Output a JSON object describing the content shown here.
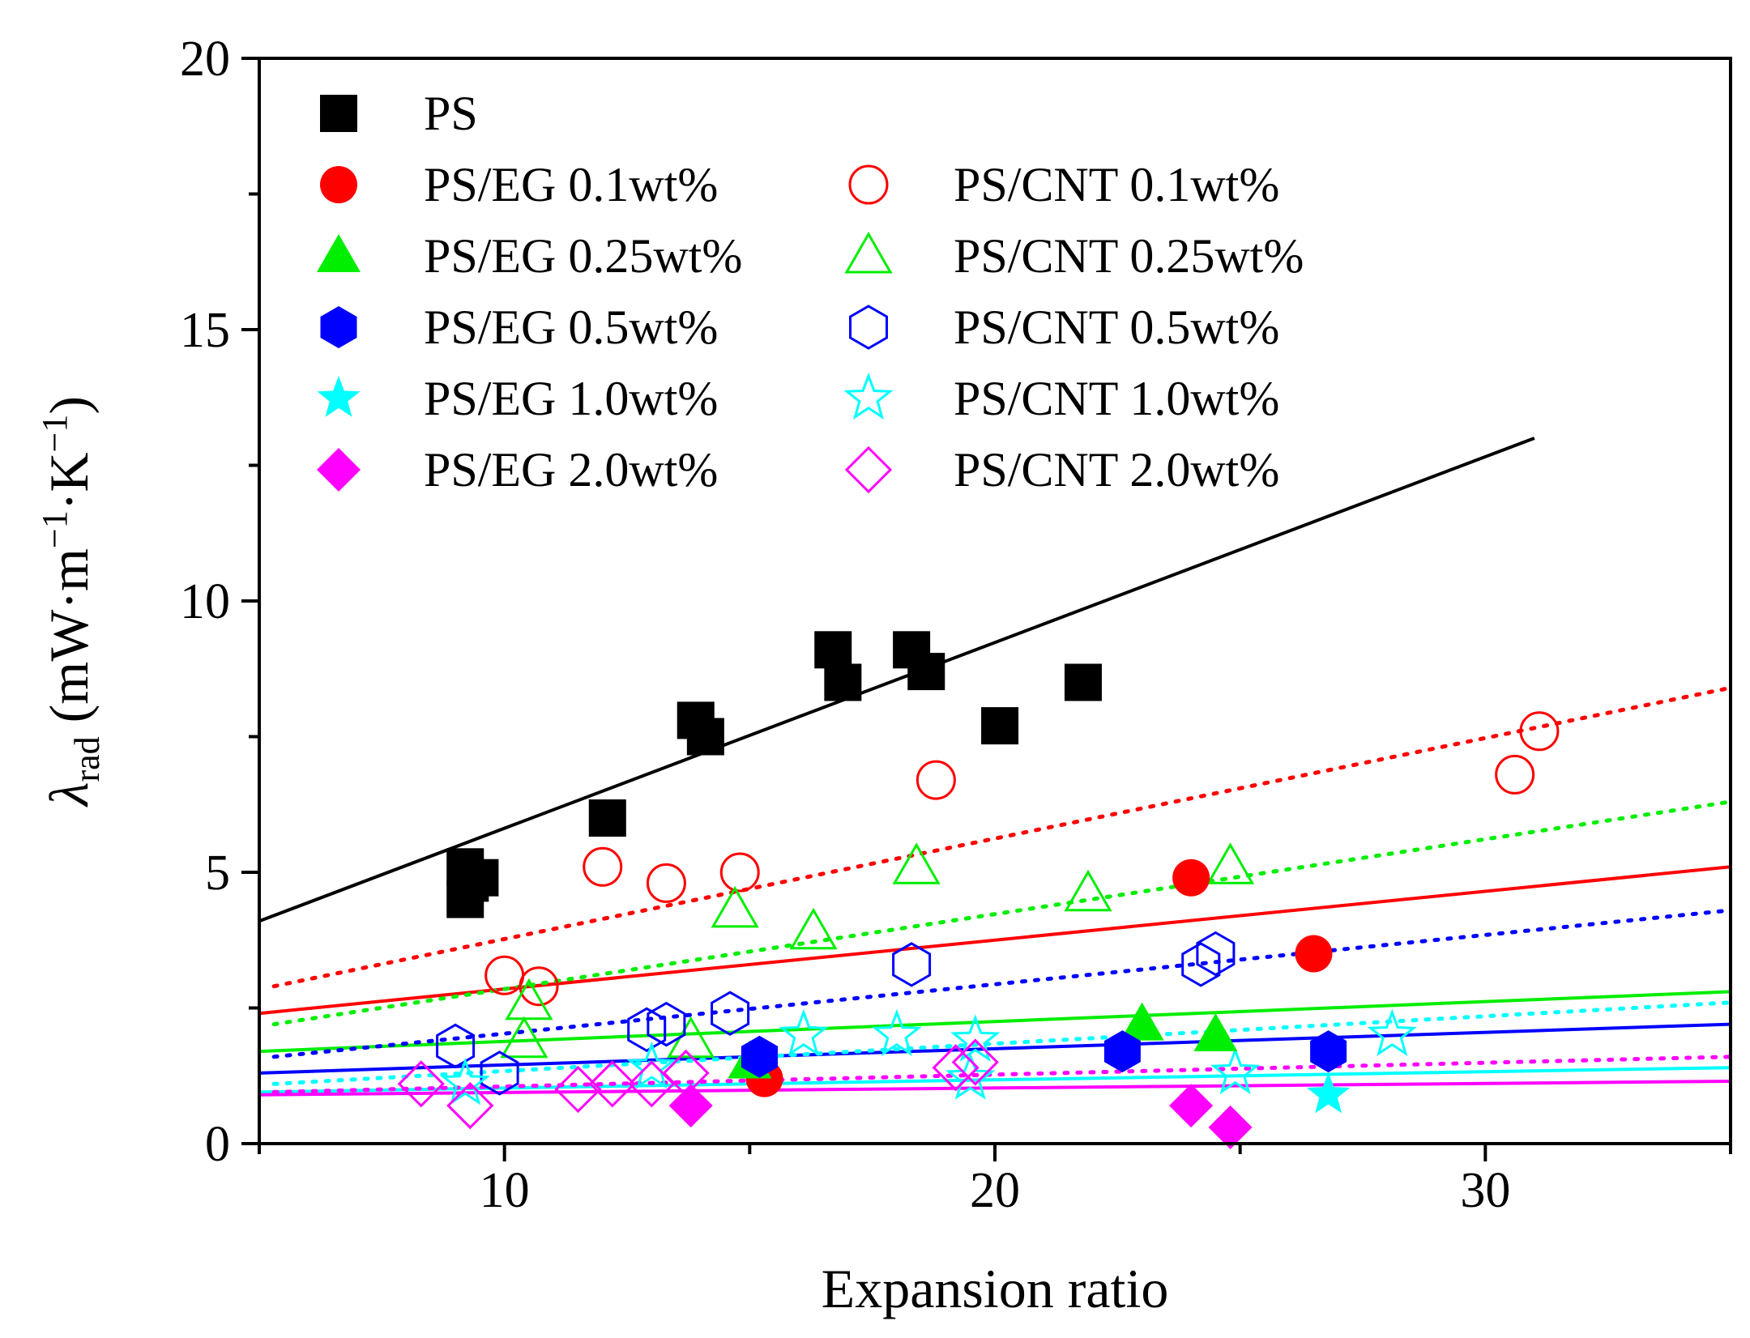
{
  "chart_data": {
    "type": "scatter",
    "xlabel": "Expansion ratio",
    "ylabel": {
      "symbol": "λ",
      "subscript": "rad",
      "units_prefix": " (mW·m",
      "sup1": "−1",
      "units_mid": "·K",
      "sup2": "−1",
      "units_suffix": ")"
    },
    "xlim": [
      5,
      35
    ],
    "ylim": [
      0,
      20
    ],
    "x_ticks": [
      10,
      20,
      30
    ],
    "x_tick_labels": [
      "10",
      "20",
      "30"
    ],
    "y_ticks": [
      0,
      5,
      10,
      15,
      20
    ],
    "y_tick_labels": [
      "0",
      "5",
      "10",
      "15",
      "20"
    ],
    "legend_position": "top-left",
    "series": [
      {
        "name": "PS",
        "marker": "square",
        "filled": true,
        "color": "#000000",
        "fit": {
          "style": "solid",
          "x": [
            5,
            31
          ],
          "y": [
            4.1,
            13.0
          ]
        },
        "points": [
          [
            9.2,
            5.1
          ],
          [
            9.3,
            4.8
          ],
          [
            9.5,
            4.9
          ],
          [
            9.2,
            4.5
          ],
          [
            13.9,
            7.8
          ],
          [
            14.1,
            7.5
          ],
          [
            12.1,
            6.0
          ],
          [
            16.7,
            9.1
          ],
          [
            16.9,
            8.5
          ],
          [
            18.3,
            9.1
          ],
          [
            18.6,
            8.7
          ],
          [
            20.1,
            7.7
          ],
          [
            21.8,
            8.5
          ]
        ]
      },
      {
        "name": "PS/EG 0.1wt%",
        "marker": "circle",
        "filled": true,
        "color": "#ff0000",
        "fit": {
          "style": "solid",
          "x": [
            5,
            35
          ],
          "y": [
            2.4,
            5.1
          ]
        },
        "points": [
          [
            15.3,
            1.2
          ],
          [
            24.0,
            4.9
          ],
          [
            26.5,
            3.5
          ]
        ]
      },
      {
        "name": "PS/EG 0.25wt%",
        "marker": "triangle",
        "filled": true,
        "color": "#00ee00",
        "fit": {
          "style": "solid",
          "x": [
            5,
            35
          ],
          "y": [
            1.7,
            2.8
          ]
        },
        "points": [
          [
            15.0,
            1.5
          ],
          [
            23.0,
            2.2
          ],
          [
            24.5,
            2.0
          ]
        ]
      },
      {
        "name": "PS/EG 0.5wt%",
        "marker": "hexagon",
        "filled": true,
        "color": "#0000ff",
        "fit": {
          "style": "solid",
          "x": [
            5,
            35
          ],
          "y": [
            1.3,
            2.2
          ]
        },
        "points": [
          [
            15.2,
            1.6
          ],
          [
            22.6,
            1.7
          ],
          [
            26.8,
            1.7
          ]
        ]
      },
      {
        "name": "PS/EG 1.0wt%",
        "marker": "star",
        "filled": true,
        "color": "#00ffff",
        "fit": {
          "style": "solid",
          "x": [
            5,
            35
          ],
          "y": [
            0.95,
            1.4
          ]
        },
        "points": [
          [
            26.8,
            0.9
          ]
        ]
      },
      {
        "name": "PS/EG 2.0wt%",
        "marker": "diamond",
        "filled": true,
        "color": "#ff00ff",
        "fit": {
          "style": "solid",
          "x": [
            5,
            35
          ],
          "y": [
            0.9,
            1.15
          ]
        },
        "points": [
          [
            13.8,
            0.7
          ],
          [
            24.0,
            0.7
          ],
          [
            24.8,
            0.3
          ]
        ]
      },
      {
        "name": "PS/CNT 0.1wt%",
        "marker": "circle",
        "filled": false,
        "color": "#ff0000",
        "fit": {
          "style": "dotted",
          "x": [
            5.3,
            35
          ],
          "y": [
            2.9,
            8.4
          ]
        },
        "points": [
          [
            10.0,
            3.1
          ],
          [
            10.7,
            2.9
          ],
          [
            12.0,
            5.1
          ],
          [
            13.3,
            4.8
          ],
          [
            14.8,
            5.0
          ],
          [
            18.8,
            6.7
          ],
          [
            30.6,
            6.8
          ],
          [
            31.1,
            7.6
          ]
        ]
      },
      {
        "name": "PS/CNT 0.25wt%",
        "marker": "triangle",
        "filled": false,
        "color": "#00ee00",
        "fit": {
          "style": "dotted",
          "x": [
            5.3,
            35
          ],
          "y": [
            2.2,
            6.3
          ]
        },
        "points": [
          [
            10.5,
            2.6
          ],
          [
            10.4,
            1.9
          ],
          [
            13.8,
            1.9
          ],
          [
            14.7,
            4.3
          ],
          [
            16.3,
            3.9
          ],
          [
            18.4,
            5.1
          ],
          [
            21.9,
            4.6
          ],
          [
            24.8,
            5.1
          ]
        ]
      },
      {
        "name": "PS/CNT 0.5wt%",
        "marker": "hexagon",
        "filled": false,
        "color": "#0000ff",
        "fit": {
          "style": "dotted",
          "x": [
            5.3,
            35
          ],
          "y": [
            1.6,
            4.3
          ]
        },
        "points": [
          [
            9.0,
            1.8
          ],
          [
            9.9,
            1.3
          ],
          [
            12.9,
            2.1
          ],
          [
            13.3,
            2.2
          ],
          [
            14.6,
            2.4
          ],
          [
            18.3,
            3.3
          ],
          [
            24.2,
            3.3
          ],
          [
            24.5,
            3.5
          ]
        ]
      },
      {
        "name": "PS/CNT 1.0wt%",
        "marker": "star",
        "filled": false,
        "color": "#00ffff",
        "fit": {
          "style": "dotted",
          "x": [
            5.3,
            35
          ],
          "y": [
            1.1,
            2.6
          ]
        },
        "points": [
          [
            9.2,
            1.1
          ],
          [
            13.0,
            1.4
          ],
          [
            16.1,
            2.0
          ],
          [
            18.0,
            2.0
          ],
          [
            19.6,
            1.9
          ],
          [
            19.5,
            1.2
          ],
          [
            24.9,
            1.3
          ],
          [
            28.1,
            2.0
          ]
        ]
      },
      {
        "name": "PS/CNT 2.0wt%",
        "marker": "diamond",
        "filled": false,
        "color": "#ff00ff",
        "fit": {
          "style": "dotted",
          "x": [
            5.3,
            35
          ],
          "y": [
            0.95,
            1.6
          ]
        },
        "points": [
          [
            8.3,
            1.1
          ],
          [
            9.3,
            0.7
          ],
          [
            11.5,
            1.0
          ],
          [
            12.2,
            1.1
          ],
          [
            13.0,
            1.1
          ],
          [
            13.7,
            1.3
          ],
          [
            19.2,
            1.4
          ],
          [
            19.6,
            1.5
          ]
        ]
      }
    ]
  }
}
